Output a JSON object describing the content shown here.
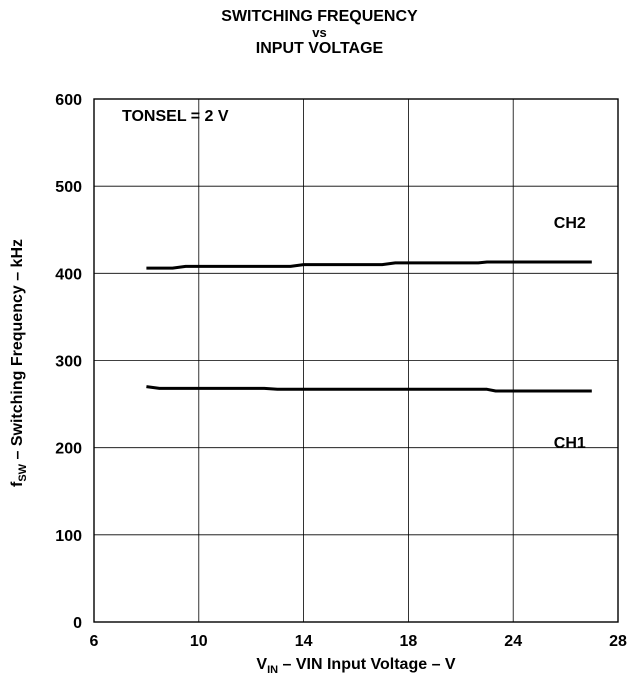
{
  "chart_data": {
    "type": "line",
    "title_lines": [
      "SWITCHING FREQUENCY",
      "vs",
      "INPUT VOLTAGE"
    ],
    "xlabel": {
      "pre": "V",
      "sub": "IN",
      "post": " – VIN Input Voltage – V"
    },
    "ylabel": {
      "pre": "f",
      "sub": "SW",
      "post": " – Switching Frequency  – kHz"
    },
    "x_ticks": [
      6,
      10,
      14,
      18,
      24,
      28
    ],
    "y_ticks": [
      0,
      100,
      200,
      300,
      400,
      500,
      600
    ],
    "ylim": [
      0,
      600
    ],
    "grid": true,
    "annotation": "TONSEL = 2 V",
    "series": [
      {
        "name": "CH2",
        "x": [
          8,
          9,
          9.5,
          10,
          13.5,
          14,
          17,
          17.5,
          22,
          22.5,
          27
        ],
        "y": [
          406,
          406,
          408,
          408,
          408,
          410,
          410,
          412,
          412,
          413,
          413
        ]
      },
      {
        "name": "CH1",
        "x": [
          8,
          8.5,
          12.5,
          13,
          22.5,
          23,
          27
        ],
        "y": [
          270,
          268,
          268,
          267,
          267,
          265,
          265
        ]
      }
    ]
  }
}
